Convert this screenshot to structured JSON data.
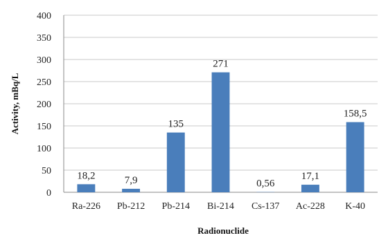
{
  "colors": {
    "bar": "#4a7ebb",
    "grid": "#c8c8c8",
    "axis": "#8a8a8a"
  },
  "chart_data": {
    "type": "bar",
    "title": "",
    "xlabel": "Radionuclide",
    "ylabel": "Activity, mBq/L",
    "ylim": [
      0,
      400
    ],
    "yticks": [
      "0",
      "50",
      "100",
      "150",
      "200",
      "250",
      "300",
      "350",
      "400"
    ],
    "grid": true,
    "legend": "none",
    "categories": [
      "Ra-226",
      "Pb-212",
      "Pb-214",
      "Bi-214",
      "Cs-137",
      "Ac-228",
      "K-40"
    ],
    "values": [
      18.2,
      7.9,
      135,
      271,
      0.56,
      17.1,
      158.5
    ],
    "data_labels": [
      "18,2",
      "7,9",
      "135",
      "271",
      "0,56",
      "17,1",
      "158,5"
    ]
  }
}
